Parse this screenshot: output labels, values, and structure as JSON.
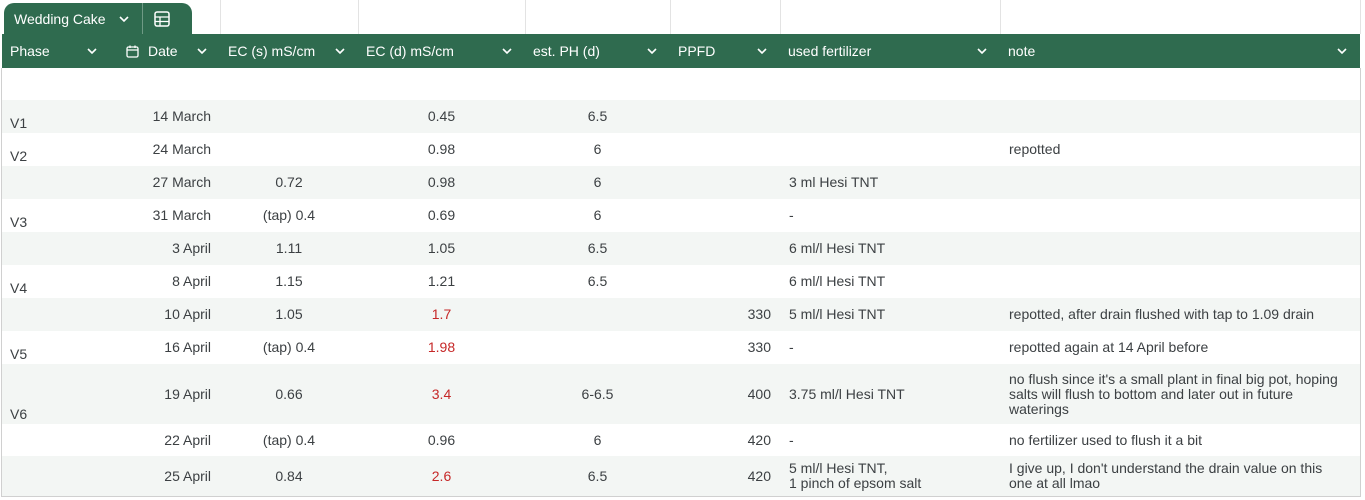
{
  "tab": {
    "title": "Wedding Cake"
  },
  "headers": [
    "Phase",
    "Date",
    "EC (s) mS/cm",
    "EC (d) mS/cm",
    "est. PH (d)",
    "PPFD",
    "used fertilizer",
    "note"
  ],
  "rows": [
    {
      "cells": [
        "V1",
        "14 March",
        null,
        0.45,
        6.5,
        null,
        null,
        null
      ]
    },
    {
      "cells": [
        "V2",
        "24 March",
        null,
        0.98,
        6,
        null,
        null,
        "repotted"
      ]
    },
    {
      "cells": [
        null,
        "27 March",
        0.72,
        0.98,
        6,
        null,
        "3 ml Hesi TNT",
        null
      ]
    },
    {
      "cells": [
        "V3",
        "31 March",
        "(tap) 0.4",
        0.69,
        6,
        null,
        "-",
        null
      ]
    },
    {
      "cells": [
        null,
        "3 April",
        1.11,
        1.05,
        6.5,
        null,
        "6 ml/l Hesi TNT",
        null
      ]
    },
    {
      "cells": [
        "V4",
        "8 April",
        1.15,
        1.21,
        6.5,
        null,
        "6 ml/l Hesi TNT",
        null
      ]
    },
    {
      "cells": [
        null,
        "10 April",
        1.05,
        1.7,
        null,
        330,
        "5 ml/l Hesi TNT",
        "repotted, after drain flushed with tap to 1.09 drain"
      ],
      "ec_d_color": "#c62828"
    },
    {
      "cells": [
        "V5",
        "16 April",
        "(tap) 0.4",
        1.98,
        null,
        330,
        "-",
        "repotted again at 14 April before"
      ],
      "ec_d_color": "#c62828"
    },
    {
      "cells": [
        "V6",
        "19 April",
        0.66,
        3.4,
        "6-6.5",
        400,
        "3.75 ml/l Hesi TNT",
        "no flush since it's a small plant in final big pot, hoping salts will flush to bottom and later out in future waterings"
      ],
      "ec_d_color": "#c62828"
    },
    {
      "cells": [
        null,
        "22 April",
        "(tap) 0.4",
        0.96,
        6,
        420,
        "-",
        "no fertilizer used to flush it a bit"
      ]
    },
    {
      "cells": [
        null,
        "25 April",
        0.84,
        2.6,
        6.5,
        420,
        "5 ml/l Hesi TNT,\n1 pinch of epsom salt",
        "I give up, I don't understand the drain value on this one at all lmao"
      ],
      "ec_d_color": "#c62828"
    }
  ]
}
